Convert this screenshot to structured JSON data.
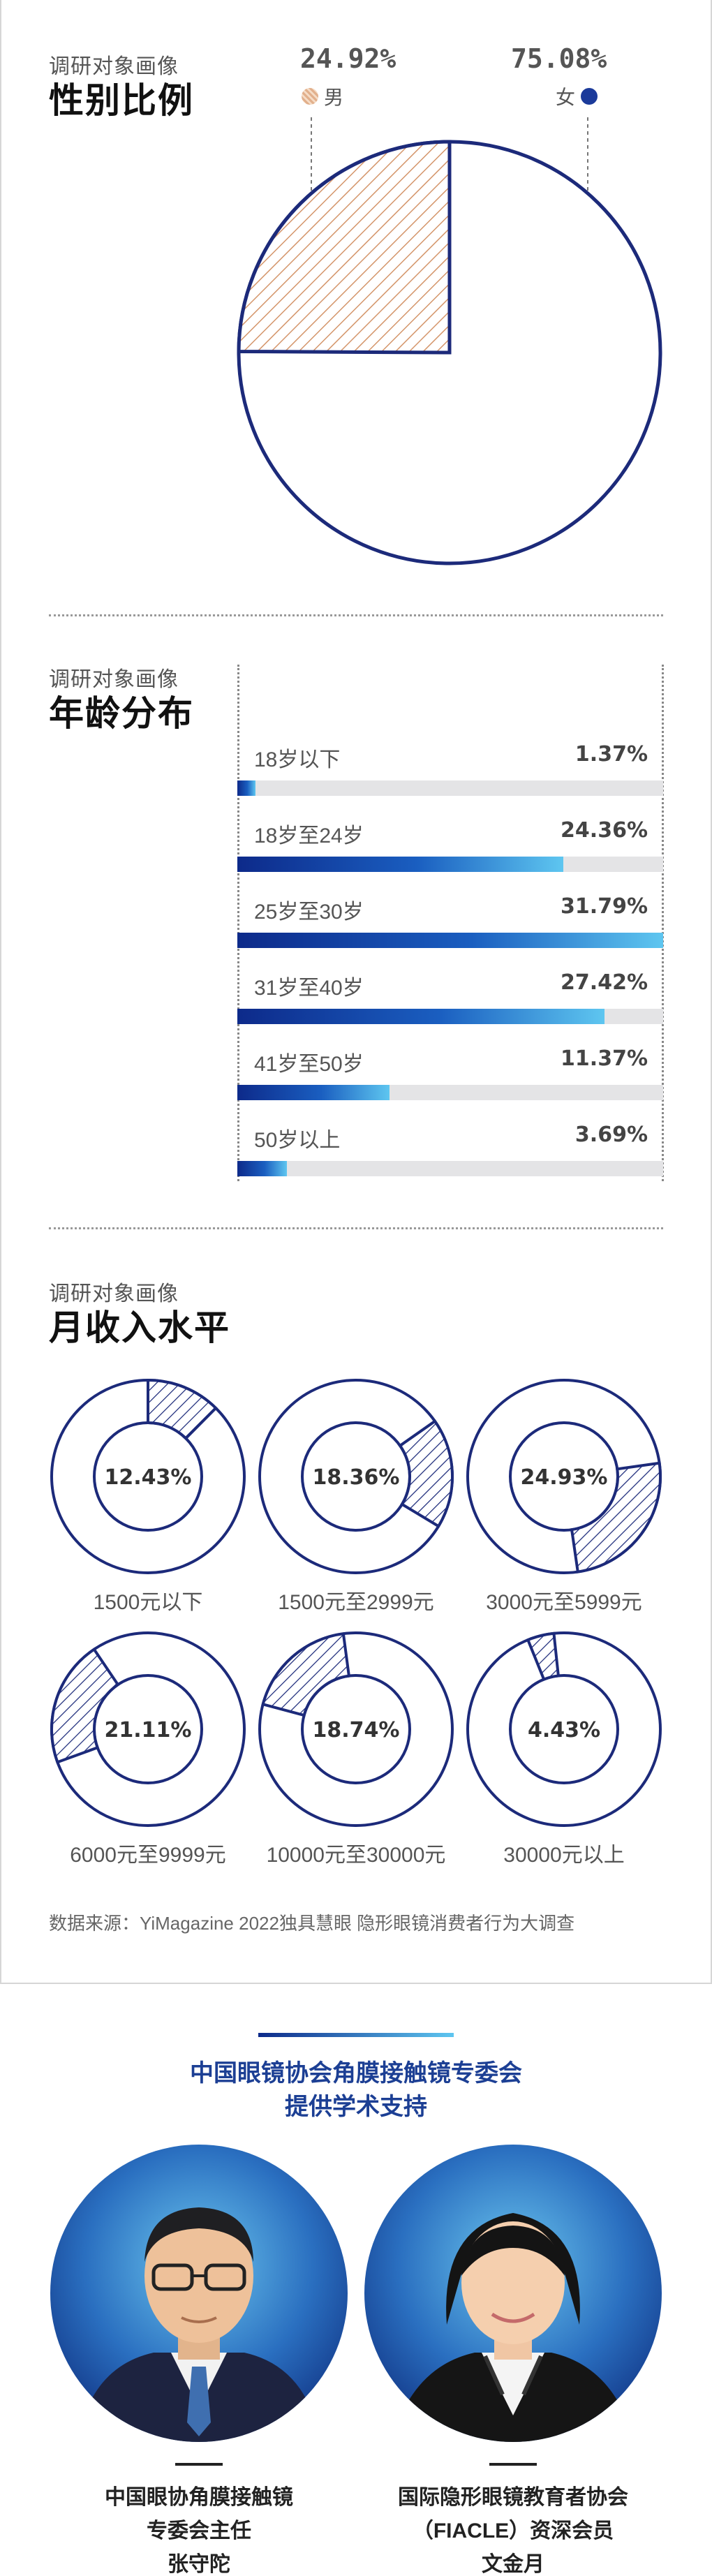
{
  "colors": {
    "navy": "#1c2a7a",
    "blue_bar_start": "#0d2a8a",
    "blue_bar_end": "#5ec6f0",
    "male_tan": "#d4956a",
    "female_blue": "#1b3a9a"
  },
  "gender": {
    "kicker": "调研对象画像",
    "title": "性别比例",
    "male_pct": "24.92%",
    "male_label": "男",
    "female_pct": "75.08%",
    "female_label": "女"
  },
  "age": {
    "kicker": "调研对象画像",
    "title": "年龄分布",
    "items": [
      {
        "label": "18岁以下",
        "value": "1.37%"
      },
      {
        "label": "18岁至24岁",
        "value": "24.36%"
      },
      {
        "label": "25岁至30岁",
        "value": "31.79%"
      },
      {
        "label": "31岁至40岁",
        "value": "27.42%"
      },
      {
        "label": "41岁至50岁",
        "value": "11.37%"
      },
      {
        "label": "50岁以上",
        "value": "3.69%"
      }
    ]
  },
  "income": {
    "kicker": "调研对象画像",
    "title": "月收入水平",
    "items": [
      {
        "label": "1500元以下",
        "value": "12.43%"
      },
      {
        "label": "1500元至2999元",
        "value": "18.36%"
      },
      {
        "label": "3000元至5999元",
        "value": "24.93%"
      },
      {
        "label": "6000元至9999元",
        "value": "21.11%"
      },
      {
        "label": "10000元至30000元",
        "value": "18.74%"
      },
      {
        "label": "30000元以上",
        "value": "4.43%"
      }
    ]
  },
  "source": "数据来源：YiMagazine 2022独具慧眼 隐形眼镜消费者行为大调查",
  "support": {
    "line1": "中国眼镜协会角膜接触镜专委会",
    "line2": "提供学术支持"
  },
  "experts": [
    {
      "org": "中国眼协角膜接触镜",
      "role": "专委会主任",
      "name": "张守陀"
    },
    {
      "org": "国际隐形眼镜教育者协会",
      "role": "（FIACLE）资深会员",
      "name": "文金月"
    }
  ],
  "chart_data": [
    {
      "type": "pie",
      "title": "性别比例",
      "categories": [
        "男",
        "女"
      ],
      "values": [
        24.92,
        75.08
      ]
    },
    {
      "type": "bar",
      "title": "年龄分布",
      "categories": [
        "18岁以下",
        "18岁至24岁",
        "25岁至30岁",
        "31岁至40岁",
        "41岁至50岁",
        "50岁以上"
      ],
      "values": [
        1.37,
        24.36,
        31.79,
        27.42,
        11.37,
        3.69
      ],
      "orientation": "horizontal",
      "xlim": [
        0,
        31.79
      ]
    },
    {
      "type": "pie",
      "title": "月收入水平",
      "categories": [
        "1500元以下",
        "1500元至2999元",
        "3000元至5999元",
        "6000元至9999元",
        "10000元至30000元",
        "30000元以上"
      ],
      "values": [
        12.43,
        18.36,
        24.93,
        21.11,
        18.74,
        4.43
      ]
    }
  ]
}
